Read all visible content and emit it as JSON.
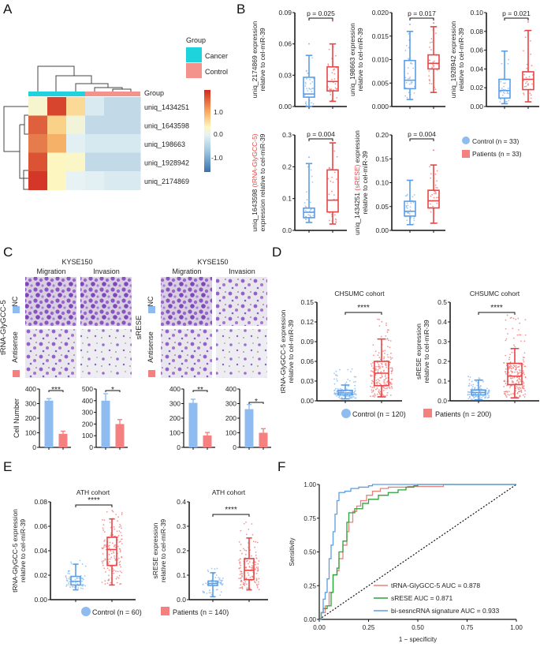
{
  "panels": {
    "A": "A",
    "B": "B",
    "C": "C",
    "D": "D",
    "E": "E",
    "F": "F"
  },
  "colors": {
    "control": "#5b9ee6",
    "control_fill": "#8fbcf0",
    "patients": "#e84545",
    "patients_fill": "#f58080",
    "cancer_group": "#1fd3dd",
    "control_group": "#f4938b",
    "roc_trna": "#e8827a",
    "roc_srese": "#2aa33a",
    "roc_bi": "#5b9ee6"
  },
  "chart_data": [
    {
      "id": "A",
      "type": "heatmap",
      "title": "",
      "legend_title": "Group",
      "legend": [
        {
          "label": "Cancer",
          "color": "#1fd3dd"
        },
        {
          "label": "Control",
          "color": "#f4938b"
        }
      ],
      "annotation_label": "Group",
      "column_groups": [
        "Cancer",
        "Cancer",
        "Cancer",
        "Control",
        "Control",
        "Control"
      ],
      "rows": [
        "uniq_1434251",
        "uniq_1643598",
        "uniq_198663",
        "uniq_1928942",
        "uniq_2174869"
      ],
      "values": [
        [
          0.1,
          1.7,
          0.5,
          -0.6,
          -0.8,
          -0.8
        ],
        [
          1.5,
          0.6,
          0.0,
          -0.8,
          -0.8,
          -0.8
        ],
        [
          1.3,
          0.9,
          -0.3,
          -0.7,
          -0.7,
          -0.7
        ],
        [
          1.6,
          0.2,
          0.15,
          -0.8,
          -0.8,
          -0.8
        ],
        [
          1.8,
          0.2,
          -0.2,
          -0.3,
          -0.6,
          -0.6
        ]
      ],
      "colorbar_ticks": [
        "1.0",
        "0.0",
        "-1.0"
      ],
      "colorbar_range": [
        -1.5,
        1.9
      ]
    },
    {
      "id": "B",
      "type": "box",
      "legend": [
        {
          "label": "Control (n = 33)",
          "marker": "circle"
        },
        {
          "label": "Patients (n = 33)",
          "marker": "square"
        }
      ],
      "plots": [
        {
          "ylabel": [
            "uniq_2174869 expression",
            "relative to cel-miR-39"
          ],
          "ylim": [
            0,
            0.09
          ],
          "ticks": [
            "0.00",
            "0.03",
            "0.06",
            "0.09"
          ],
          "p": "p = 0.025",
          "control": {
            "min": 0.0,
            "q1": 0.009,
            "median": 0.012,
            "q3": 0.028,
            "max": 0.049,
            "outliers": [
              0.06
            ]
          },
          "patients": {
            "min": 0.005,
            "q1": 0.015,
            "median": 0.024,
            "q3": 0.038,
            "max": 0.06,
            "outliers": [
              0.082
            ]
          }
        },
        {
          "ylabel": [
            "uniq_198663 expression",
            "relative to cel-miR-39"
          ],
          "ylim": [
            0,
            0.02
          ],
          "ticks": [
            "0.000",
            "0.005",
            "0.010",
            "0.015",
            "0.020"
          ],
          "p": "p = 0.017",
          "control": {
            "min": 0.0015,
            "q1": 0.0038,
            "median": 0.0056,
            "q3": 0.0098,
            "max": 0.016,
            "outliers": [
              0.0175
            ]
          },
          "patients": {
            "min": 0.003,
            "q1": 0.008,
            "median": 0.0092,
            "q3": 0.011,
            "max": 0.017,
            "outliers": [
              0.0178
            ]
          }
        },
        {
          "ylabel": [
            "uniq_1928942 expression",
            "relative to cel-miR-39"
          ],
          "ylim": [
            0,
            0.1
          ],
          "ticks": [
            "0.00",
            "0.02",
            "0.04",
            "0.06",
            "0.08",
            "0.10"
          ],
          "p": "p = 0.021",
          "control": {
            "min": 0.003,
            "q1": 0.009,
            "median": 0.017,
            "q3": 0.029,
            "max": 0.059,
            "outliers": []
          },
          "patients": {
            "min": 0.005,
            "q1": 0.018,
            "median": 0.029,
            "q3": 0.037,
            "max": 0.081,
            "outliers": [
              0.09
            ]
          }
        },
        {
          "ylabel_parts": [
            [
              "uniq_1643598 ",
              "#222"
            ],
            [
              "(tRNA-GlyGCC-5)",
              "#e84545"
            ]
          ],
          "ylabel2": "expression relative to cel-miR-39",
          "ylim": [
            0,
            0.3
          ],
          "ticks": [
            "0.0",
            "0.1",
            "0.2",
            "0.3"
          ],
          "p": "p = 0.004",
          "control": {
            "min": 0.025,
            "q1": 0.04,
            "median": 0.057,
            "q3": 0.07,
            "max": 0.21,
            "outliers": [
              0.23
            ]
          },
          "patients": {
            "min": 0.02,
            "q1": 0.058,
            "median": 0.095,
            "q3": 0.19,
            "max": 0.275,
            "outliers": []
          }
        },
        {
          "ylabel_parts": [
            [
              "uniq_1434251 ",
              "#222"
            ],
            [
              "(sRESE)",
              "#e84545"
            ],
            [
              " expression",
              "#222"
            ]
          ],
          "ylabel2": "relative to cel-miR-39",
          "ylim": [
            0,
            0.2
          ],
          "ticks": [
            "0.00",
            "0.05",
            "0.10",
            "0.15",
            "0.20"
          ],
          "p": "p = 0.004",
          "control": {
            "min": 0.012,
            "q1": 0.03,
            "median": 0.04,
            "q3": 0.061,
            "max": 0.105,
            "outliers": []
          },
          "patients": {
            "min": 0.015,
            "q1": 0.047,
            "median": 0.062,
            "q3": 0.084,
            "max": 0.137,
            "outliers": [
              0.168
            ]
          }
        }
      ]
    },
    {
      "id": "C",
      "type": "bar",
      "groups": [
        {
          "cell_line": "KYSE150",
          "target": "tRNA-GlyGCC-5",
          "columns": [
            "Migration",
            "Invasion"
          ],
          "rows": [
            "NC",
            "Antisense"
          ]
        },
        {
          "cell_line": "KYSE150",
          "target": "sRESE",
          "columns": [
            "Migration",
            "Invasion"
          ],
          "rows": [
            "NC",
            "Antisense"
          ]
        }
      ],
      "ylabel": "Cell Number",
      "plots": [
        {
          "ylim": [
            0,
            400
          ],
          "ticks": [
            "0",
            "100",
            "200",
            "300",
            "400"
          ],
          "values": [
            320,
            93
          ],
          "errors": [
            14,
            18
          ],
          "sig": "***"
        },
        {
          "ylim": [
            0,
            500
          ],
          "ticks": [
            "0",
            "100",
            "200",
            "300",
            "400",
            "500"
          ],
          "values": [
            400,
            200
          ],
          "errors": [
            60,
            38
          ],
          "sig": "*"
        },
        {
          "ylim": [
            0,
            400
          ],
          "ticks": [
            "0",
            "100",
            "200",
            "300",
            "400"
          ],
          "values": [
            305,
            82
          ],
          "errors": [
            25,
            20
          ],
          "sig": "**"
        },
        {
          "ylim": [
            0,
            400
          ],
          "ticks": [
            "0",
            "100",
            "200",
            "300",
            "400"
          ],
          "values": [
            262,
            100
          ],
          "errors": [
            32,
            28
          ],
          "sig": "*"
        }
      ],
      "categories": [
        "NC",
        "Antisense"
      ]
    },
    {
      "id": "D",
      "type": "box",
      "legend": [
        {
          "label": "Control (n = 120)",
          "marker": "circle"
        },
        {
          "label": "Patients (n = 200)",
          "marker": "square"
        }
      ],
      "plots": [
        {
          "title": "CHSUMC cohort",
          "ylabel": [
            "tRNA-GlyGCC-5 expression",
            "relative to cel-miR-39"
          ],
          "ylim": [
            0,
            0.15
          ],
          "ticks": [
            "0.00",
            "0.03",
            "0.06",
            "0.09",
            "0.12",
            "0.15"
          ],
          "sig": "****",
          "control": {
            "min": 0.003,
            "q1": 0.009,
            "median": 0.012,
            "q3": 0.016,
            "max": 0.024,
            "spread_max": 0.049
          },
          "patients": {
            "min": 0.006,
            "q1": 0.023,
            "median": 0.042,
            "q3": 0.06,
            "max": 0.094,
            "spread_max": 0.127
          }
        },
        {
          "title": "CHSUMC cohort",
          "ylabel": [
            "sRESE expression",
            "relative to cel-miR-39"
          ],
          "ylim": [
            0,
            0.5
          ],
          "ticks": [
            "0.0",
            "0.1",
            "0.2",
            "0.3",
            "0.4",
            "0.5"
          ],
          "sig": "****",
          "control": {
            "min": 0.005,
            "q1": 0.03,
            "median": 0.042,
            "q3": 0.055,
            "max": 0.105,
            "spread_max": 0.125
          },
          "patients": {
            "min": 0.015,
            "q1": 0.082,
            "median": 0.125,
            "q3": 0.19,
            "max": 0.265,
            "spread_max": 0.46
          }
        }
      ]
    },
    {
      "id": "E",
      "type": "box",
      "legend": [
        {
          "label": "Control (n = 60)",
          "marker": "circle"
        },
        {
          "label": "Patients (n = 140)",
          "marker": "square"
        }
      ],
      "plots": [
        {
          "title": "ATH cohort",
          "ylabel": [
            "tRNA-GlyGCC-5 expression",
            "relative to cel-miR-39"
          ],
          "ylim": [
            0,
            0.08
          ],
          "ticks": [
            "0.00",
            "0.02",
            "0.04",
            "0.06",
            "0.08"
          ],
          "sig": "****",
          "control": {
            "min": 0.008,
            "q1": 0.012,
            "median": 0.015,
            "q3": 0.019,
            "max": 0.029,
            "spread_max": 0.032
          },
          "patients": {
            "min": 0.012,
            "q1": 0.028,
            "median": 0.041,
            "q3": 0.051,
            "max": 0.066,
            "spread_max": 0.073
          }
        },
        {
          "title": "ATH cohort",
          "ylabel": [
            "sRESE expression",
            "relative to cel-miR-39"
          ],
          "ylim": [
            0,
            0.4
          ],
          "ticks": [
            "0.0",
            "0.1",
            "0.2",
            "0.3",
            "0.4"
          ],
          "sig": "****",
          "control": {
            "min": 0.012,
            "q1": 0.058,
            "median": 0.066,
            "q3": 0.076,
            "max": 0.11,
            "spread_max": 0.13
          },
          "patients": {
            "min": 0.04,
            "q1": 0.082,
            "median": 0.12,
            "q3": 0.168,
            "max": 0.252,
            "spread_max": 0.32
          }
        }
      ]
    },
    {
      "id": "F",
      "type": "line",
      "xlabel": "1 − specificity",
      "ylabel": "Sensitivity",
      "xlim": [
        0,
        1
      ],
      "ylim": [
        0,
        1
      ],
      "xticks": [
        "0.00",
        "0.25",
        "0.50",
        "0.75",
        "1.00"
      ],
      "yticks": [
        "0.00",
        "0.25",
        "0.50",
        "0.75",
        "1.00"
      ],
      "legend_position": "bottom-right",
      "series": [
        {
          "name": "tRNA-GlyGCC-5 AUC = 0.878",
          "color": "#e8827a",
          "points": [
            [
              0,
              0
            ],
            [
              0.01,
              0.05
            ],
            [
              0.03,
              0.1
            ],
            [
              0.05,
              0.2
            ],
            [
              0.07,
              0.33
            ],
            [
              0.09,
              0.36
            ],
            [
              0.1,
              0.45
            ],
            [
              0.12,
              0.55
            ],
            [
              0.14,
              0.65
            ],
            [
              0.15,
              0.72
            ],
            [
              0.17,
              0.8
            ],
            [
              0.19,
              0.84
            ],
            [
              0.21,
              0.88
            ],
            [
              0.24,
              0.92
            ],
            [
              0.27,
              0.95
            ],
            [
              0.31,
              0.97
            ],
            [
              0.35,
              0.98
            ],
            [
              0.45,
              0.985
            ],
            [
              0.55,
              0.985
            ],
            [
              0.62,
              0.985
            ],
            [
              0.63,
              1.0
            ],
            [
              1.0,
              1.0
            ]
          ]
        },
        {
          "name": "sRESE AUC = 0.871",
          "color": "#2aa33a",
          "points": [
            [
              0,
              0
            ],
            [
              0.01,
              0.05
            ],
            [
              0.02,
              0.08
            ],
            [
              0.04,
              0.1
            ],
            [
              0.06,
              0.2
            ],
            [
              0.07,
              0.33
            ],
            [
              0.09,
              0.38
            ],
            [
              0.1,
              0.5
            ],
            [
              0.12,
              0.58
            ],
            [
              0.14,
              0.72
            ],
            [
              0.15,
              0.79
            ],
            [
              0.18,
              0.82
            ],
            [
              0.22,
              0.86
            ],
            [
              0.25,
              0.89
            ],
            [
              0.3,
              0.92
            ],
            [
              0.35,
              0.94
            ],
            [
              0.4,
              0.96
            ],
            [
              0.44,
              0.98
            ],
            [
              0.48,
              0.99
            ],
            [
              0.5,
              1.0
            ],
            [
              1.0,
              1.0
            ]
          ]
        },
        {
          "name": "bi-sesncRNA signature AUC = 0.933",
          "color": "#5b9ee6",
          "points": [
            [
              0,
              0
            ],
            [
              0.01,
              0.05
            ],
            [
              0.02,
              0.15
            ],
            [
              0.03,
              0.2
            ],
            [
              0.04,
              0.3
            ],
            [
              0.05,
              0.45
            ],
            [
              0.06,
              0.55
            ],
            [
              0.07,
              0.65
            ],
            [
              0.08,
              0.78
            ],
            [
              0.09,
              0.88
            ],
            [
              0.1,
              0.94
            ],
            [
              0.13,
              0.95
            ],
            [
              0.16,
              0.97
            ],
            [
              0.2,
              0.98
            ],
            [
              0.25,
              0.99
            ],
            [
              0.27,
              1.0
            ],
            [
              1.0,
              1.0
            ]
          ]
        },
        {
          "name": "reference",
          "color": "#111111",
          "dashed": true,
          "points": [
            [
              0,
              0
            ],
            [
              1,
              1
            ]
          ]
        }
      ]
    }
  ]
}
